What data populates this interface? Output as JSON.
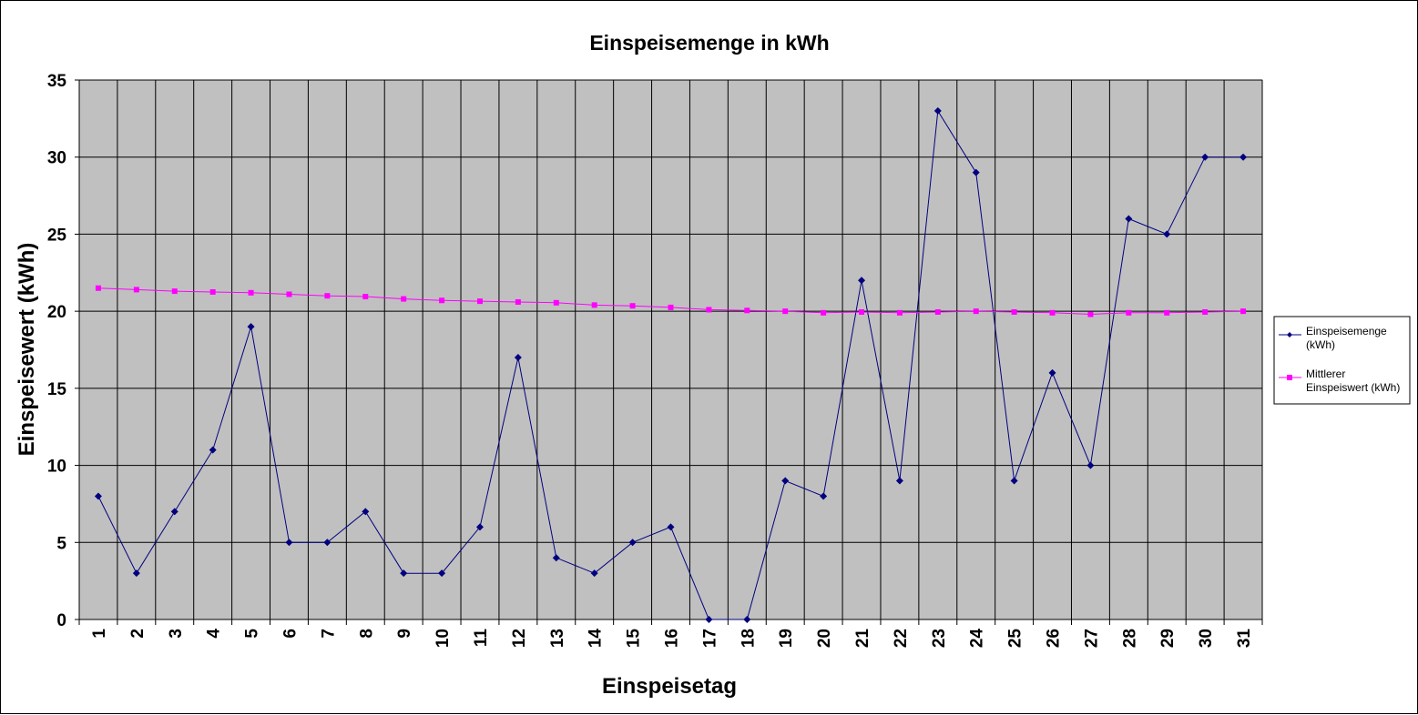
{
  "chart_data": {
    "type": "line",
    "title": "Einspeisemenge in kWh",
    "xlabel": "Einspeisetag",
    "ylabel": "Einspeisewert  (kWh)",
    "ylim": [
      0,
      35
    ],
    "yticks": [
      0,
      5,
      10,
      15,
      20,
      25,
      30,
      35
    ],
    "categories": [
      "1",
      "2",
      "3",
      "4",
      "5",
      "6",
      "7",
      "8",
      "9",
      "10",
      "11",
      "12",
      "13",
      "14",
      "15",
      "16",
      "17",
      "18",
      "19",
      "20",
      "21",
      "22",
      "23",
      "24",
      "25",
      "26",
      "27",
      "28",
      "29",
      "30",
      "31"
    ],
    "grid": true,
    "legend_position": "right",
    "plot_background": "#c0c0c0",
    "series": [
      {
        "name": "Einspeisemenge (kWh)",
        "legend_lines": [
          "Einspeisemenge",
          "(kWh)"
        ],
        "color": "#000080",
        "marker": "diamond",
        "values": [
          8,
          3,
          7,
          11,
          19,
          5,
          5,
          7,
          3,
          3,
          6,
          17,
          4,
          3,
          5,
          6,
          0,
          0,
          9,
          8,
          22,
          9,
          33,
          29,
          9,
          16,
          10,
          26,
          25,
          30,
          30
        ]
      },
      {
        "name": "Mittlerer Einspeiswert (kWh)",
        "legend_lines": [
          "Mittlerer",
          "Einspeiswert (kWh)"
        ],
        "color": "#ff00ff",
        "marker": "square",
        "values": [
          21.5,
          21.4,
          21.3,
          21.25,
          21.2,
          21.1,
          21.0,
          20.95,
          20.8,
          20.7,
          20.65,
          20.6,
          20.55,
          20.4,
          20.35,
          20.25,
          20.1,
          20.05,
          20.0,
          19.9,
          19.95,
          19.9,
          19.95,
          20.0,
          19.95,
          19.9,
          19.8,
          19.9,
          19.9,
          19.95,
          20.0
        ]
      }
    ]
  }
}
